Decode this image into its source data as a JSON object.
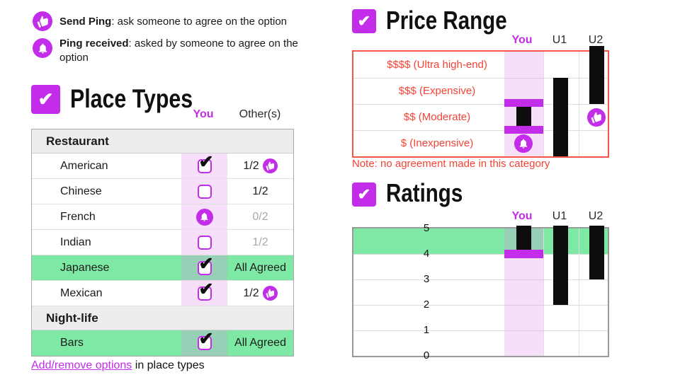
{
  "colors": {
    "accent_magenta": "#c32ce8",
    "agreed_green": "#7de9a4",
    "alert_red": "#f44336",
    "you_column_tint": "#f8e8fb",
    "bar_black": "#0d0d0d"
  },
  "legend": {
    "items": [
      {
        "icon": "send-ping",
        "term": "Send Ping",
        "desc": ": ask someone to agree on the option"
      },
      {
        "icon": "ping-received",
        "term": "Ping received",
        "desc": ": asked by someone to agree on the option"
      }
    ]
  },
  "place_types": {
    "title": "Place Types",
    "columns": {
      "you": "You",
      "others": "Other(s)"
    },
    "groups": [
      {
        "header": "Restaurant",
        "rows": [
          {
            "label": "American",
            "you": "checked",
            "others": "1/2",
            "others_gray": false,
            "ping": "send-ping"
          },
          {
            "label": "Chinese",
            "you": "unchecked",
            "others": "1/2",
            "others_gray": false
          },
          {
            "label": "French",
            "you": "ping-received",
            "others": "0/2",
            "others_gray": true
          },
          {
            "label": "Indian",
            "you": "unchecked",
            "others": "1/2",
            "others_gray": true
          },
          {
            "label": "Japanese",
            "you": "checked",
            "others": "All Agreed",
            "agreed": true
          },
          {
            "label": "Mexican",
            "you": "checked",
            "others": "1/2",
            "others_gray": false,
            "ping": "send-ping"
          }
        ]
      },
      {
        "header": "Night-life",
        "rows": [
          {
            "label": "Bars",
            "you": "checked",
            "others": "All Agreed",
            "agreed": true
          }
        ]
      }
    ],
    "footer": {
      "link": "Add/remove options",
      "rest": " in place types"
    }
  },
  "price_range": {
    "title": "Price Range",
    "columns": [
      "You",
      "U1",
      "U2"
    ],
    "note": "Note: no agreement made in this category",
    "chart_data": {
      "type": "range-bar",
      "categories": [
        "$$$$ (Ultra high-end)",
        "$$$ (Expensive)",
        "$$ (Moderate)",
        "$ (Inexpensive)"
      ],
      "columns": [
        "You",
        "U1",
        "U2"
      ],
      "series": [
        {
          "name": "You",
          "rows": [
            2,
            2
          ],
          "editable_handles": true,
          "badge": {
            "icon": "ping-received",
            "row": 3
          }
        },
        {
          "name": "U1",
          "rows": [
            1,
            3
          ]
        },
        {
          "name": "U2",
          "rows": [
            0,
            1
          ],
          "badge": {
            "icon": "send-ping",
            "row": 2
          }
        }
      ],
      "agreement": "none",
      "legend_position": "top"
    }
  },
  "ratings": {
    "title": "Ratings",
    "columns": [
      "You",
      "U1",
      "U2"
    ],
    "chart_data": {
      "type": "range-bar",
      "ylim": [
        0,
        5
      ],
      "yticks": [
        5,
        4,
        3,
        2,
        1,
        0
      ],
      "agreed_band": [
        4,
        5
      ],
      "columns": [
        "You",
        "U1",
        "U2"
      ],
      "series": [
        {
          "name": "You",
          "from": 5,
          "to": 4.1,
          "handle_at": 4
        },
        {
          "name": "U1",
          "from": 5,
          "to": 2
        },
        {
          "name": "U2",
          "from": 5,
          "to": 3
        }
      ]
    }
  }
}
